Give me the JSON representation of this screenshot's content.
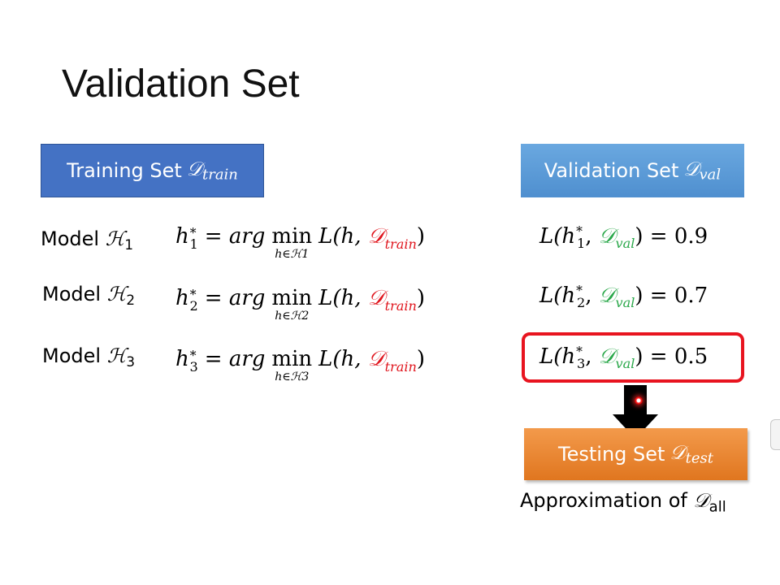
{
  "slide": {
    "title": "Validation Set"
  },
  "boxes": {
    "training": {
      "label": "Training Set",
      "symbol": "𝒟",
      "subscript": "train"
    },
    "validation": {
      "label": "Validation Set",
      "symbol": "𝒟",
      "subscript": "val"
    },
    "testing": {
      "label": "Testing Set",
      "symbol": "𝒟",
      "subscript": "test"
    }
  },
  "models": [
    {
      "label": "Model",
      "symbol": "ℋ",
      "index": "1",
      "val_loss": "0.9"
    },
    {
      "label": "Model",
      "symbol": "ℋ",
      "index": "2",
      "val_loss": "0.7"
    },
    {
      "label": "Model",
      "symbol": "ℋ",
      "index": "3",
      "val_loss": "0.5"
    }
  ],
  "equation": {
    "lhs": "h",
    "star": "*",
    "eq": "= arg",
    "min": "min",
    "under_prefix": "h∈ℋ",
    "loss_open": "L(h,",
    "dataset_symbol": "𝒟",
    "dataset_sub": "train",
    "close": ")"
  },
  "val_loss_expr": {
    "open": "L(h",
    "star": "*",
    "comma": ",",
    "dataset_symbol": "𝒟",
    "dataset_sub": "val",
    "close": ") ="
  },
  "approx": {
    "label": "Approximation of",
    "symbol": "𝒟",
    "subscript": "all"
  },
  "colors": {
    "train_box": "#4472c4",
    "val_box": "#5b9bd5",
    "test_box": "#ed7d31",
    "highlight": "#e8141f",
    "train_symbol": "#e0161e",
    "val_symbol": "#2aa84a"
  },
  "selected_model_index": "3"
}
